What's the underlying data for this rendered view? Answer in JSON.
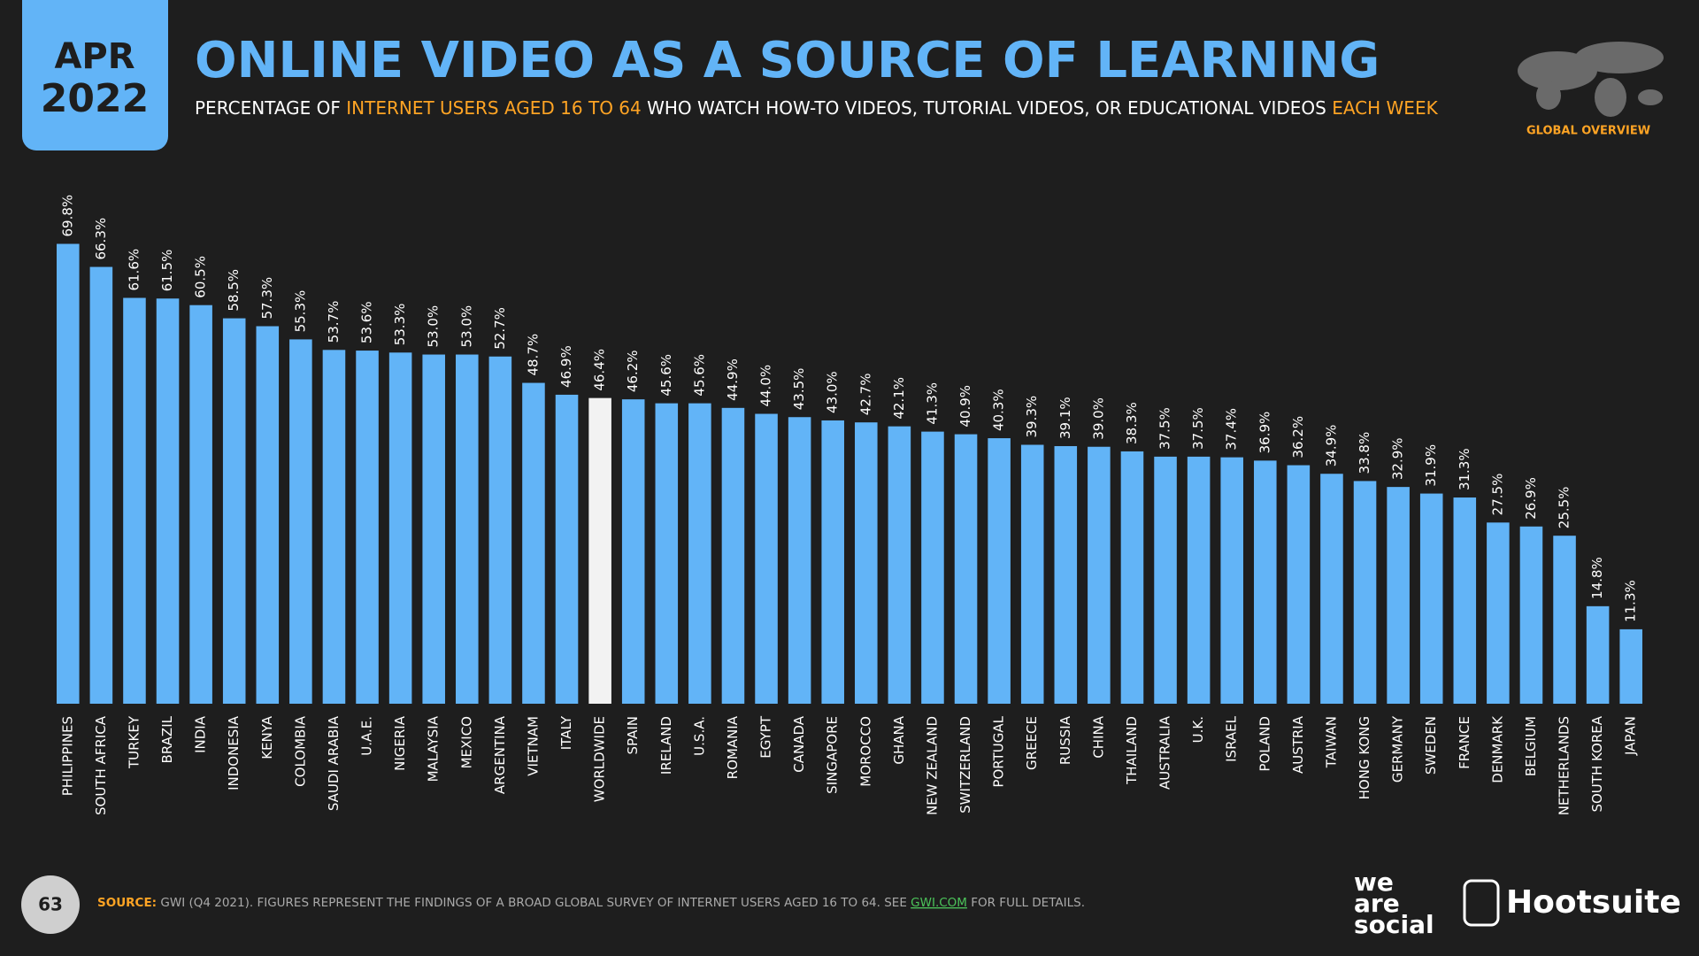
{
  "header": {
    "date_month": "APR",
    "date_year": "2022",
    "badge": "GLOBAL OVERVIEW"
  },
  "chart_data": {
    "type": "bar",
    "title": "ONLINE VIDEO AS A SOURCE OF LEARNING",
    "subtitle": [
      "PERCENTAGE OF ",
      "INTERNET USERS AGED 16 TO 64",
      " WHO WATCH HOW-TO VIDEOS, TUTORIAL VIDEOS, OR EDUCATIONAL VIDEOS ",
      "EACH WEEK"
    ],
    "categories": [
      "PHILIPPINES",
      "SOUTH AFRICA",
      "TURKEY",
      "BRAZIL",
      "INDIA",
      "INDONESIA",
      "KENYA",
      "COLOMBIA",
      "SAUDI ARABIA",
      "U.A.E.",
      "NIGERIA",
      "MALAYSIA",
      "MEXICO",
      "ARGENTINA",
      "VIETNAM",
      "ITALY",
      "WORLDWIDE",
      "SPAIN",
      "IRELAND",
      "U.S.A.",
      "ROMANIA",
      "EGYPT",
      "CANADA",
      "SINGAPORE",
      "MOROCCO",
      "GHANA",
      "NEW ZEALAND",
      "SWITZERLAND",
      "PORTUGAL",
      "GREECE",
      "RUSSIA",
      "CHINA",
      "THAILAND",
      "AUSTRALIA",
      "U.K.",
      "ISRAEL",
      "POLAND",
      "AUSTRIA",
      "TAIWAN",
      "HONG KONG",
      "GERMANY",
      "SWEDEN",
      "FRANCE",
      "DENMARK",
      "BELGIUM",
      "NETHERLANDS",
      "SOUTH KOREA",
      "JAPAN"
    ],
    "values": [
      69.8,
      66.3,
      61.6,
      61.5,
      60.5,
      58.5,
      57.3,
      55.3,
      53.7,
      53.6,
      53.3,
      53.0,
      53.0,
      52.7,
      48.7,
      46.9,
      46.4,
      46.2,
      45.6,
      45.6,
      44.9,
      44.0,
      43.5,
      43.0,
      42.7,
      42.1,
      41.3,
      40.9,
      40.3,
      39.3,
      39.1,
      39.0,
      38.3,
      37.5,
      37.5,
      37.4,
      36.9,
      36.2,
      34.9,
      33.8,
      32.9,
      31.9,
      31.3,
      27.5,
      26.9,
      25.5,
      14.8,
      11.3
    ],
    "value_labels": [
      "69.8%",
      "66.3%",
      "61.6%",
      "61.5%",
      "60.5%",
      "58.5%",
      "57.3%",
      "55.3%",
      "53.7%",
      "53.6%",
      "53.3%",
      "53.0%",
      "53.0%",
      "52.7%",
      "48.7%",
      "46.9%",
      "46.4%",
      "46.2%",
      "45.6%",
      "45.6%",
      "44.9%",
      "44.0%",
      "43.5%",
      "43.0%",
      "42.7%",
      "42.1%",
      "41.3%",
      "40.9%",
      "40.3%",
      "39.3%",
      "39.1%",
      "39.0%",
      "38.3%",
      "37.5%",
      "37.5%",
      "37.4%",
      "36.9%",
      "36.2%",
      "34.9%",
      "33.8%",
      "32.9%",
      "31.9%",
      "31.3%",
      "27.5%",
      "26.9%",
      "25.5%",
      "14.8%",
      "11.3%"
    ],
    "color": "#62b4f7",
    "highlight": "WORLDWIDE",
    "highlight_color": "#f2f2f2",
    "ylim": [
      0,
      70
    ]
  },
  "footer": {
    "page": "63",
    "source": [
      "SOURCE:",
      " GWI (Q4 2021). FIGURES REPRESENT THE FINDINGS OF A BROAD GLOBAL SURVEY OF INTERNET USERS AGED 16 TO 64. SEE ",
      "GWI.COM",
      " FOR FULL DETAILS."
    ],
    "logo_1": [
      "we",
      "are",
      "social"
    ],
    "logo_2": "Hootsuite"
  }
}
